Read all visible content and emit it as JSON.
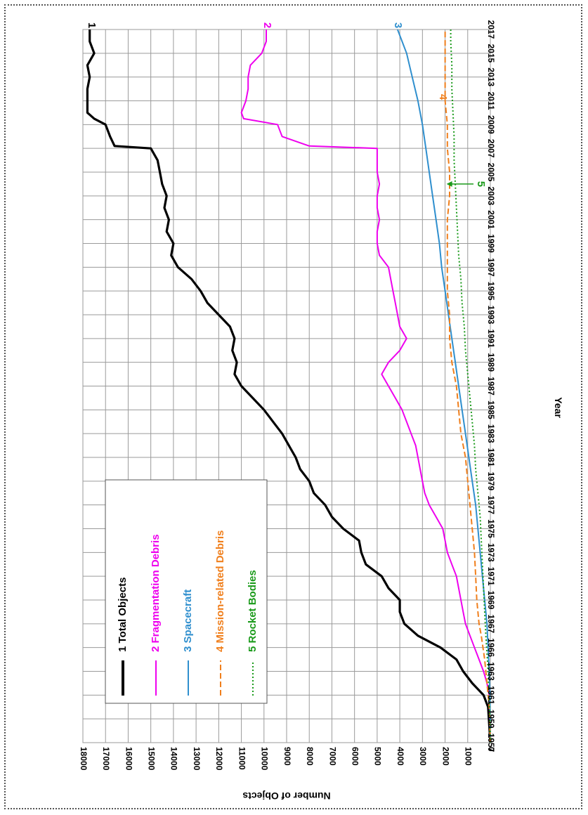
{
  "chart_data": {
    "type": "line",
    "xlabel": "Year",
    "ylabel": "Number of Objects",
    "xlim": [
      1957,
      2017
    ],
    "ylim": [
      0,
      18000
    ],
    "x_ticks": [
      "1957",
      "1959",
      "1961",
      "1963",
      "1966",
      "1967",
      "1969",
      "1971",
      "1973",
      "1975",
      "1977",
      "1979",
      "1981",
      "1983",
      "1985",
      "1987",
      "1989",
      "1991",
      "1993",
      "1995",
      "1997",
      "1999",
      "2001",
      "2003",
      "2005",
      "2007",
      "2009",
      "2011",
      "2013",
      "2015",
      "2017"
    ],
    "y_ticks": [
      "0",
      "1000",
      "2000",
      "3000",
      "4000",
      "5000",
      "6000",
      "7000",
      "8000",
      "9000",
      "10000",
      "11000",
      "12000",
      "13000",
      "14000",
      "15000",
      "16000",
      "17000",
      "18000"
    ],
    "grid": true,
    "legend_position": "top-left",
    "series": [
      {
        "name": "1 Total Objects",
        "label": "1",
        "color": "#000000",
        "dash": "solid",
        "x": [
          1957,
          1960,
          1961,
          1962,
          1963,
          1964,
          1965,
          1966,
          1967,
          1968,
          1969,
          1970,
          1971,
          1972,
          1973,
          1974,
          1975,
          1976,
          1977,
          1978,
          1979,
          1980,
          1981,
          1982,
          1983,
          1984,
          1985,
          1986,
          1987,
          1988,
          1989,
          1990,
          1991,
          1992,
          1993,
          1994,
          1995,
          1996,
          1997,
          1998,
          1999,
          2000,
          2001,
          2002,
          2003,
          2004,
          2005,
          2006,
          2007,
          2007.2,
          2008,
          2009,
          2009.5,
          2010,
          2011,
          2012,
          2013,
          2014,
          2015,
          2016,
          2017
        ],
        "y": [
          0,
          100,
          300,
          800,
          1200,
          1500,
          2200,
          3200,
          3800,
          4000,
          4000,
          4500,
          4800,
          5500,
          5700,
          5800,
          6500,
          7000,
          7300,
          7800,
          8000,
          8400,
          8600,
          8900,
          9200,
          9600,
          10000,
          10500,
          11000,
          11300,
          11200,
          11400,
          11300,
          11500,
          12000,
          12500,
          12800,
          13200,
          13800,
          14100,
          14000,
          14300,
          14200,
          14400,
          14300,
          14500,
          14600,
          14700,
          15000,
          16600,
          16800,
          17000,
          17500,
          17800,
          17800,
          17800,
          17700,
          17800,
          17500,
          17700,
          17700
        ]
      },
      {
        "name": "2 Fragmentation Debris",
        "label": "2",
        "color": "#ee00ee",
        "dash": "solid",
        "x": [
          1957,
          1961,
          1962,
          1963,
          1964,
          1965,
          1966,
          1967,
          1968,
          1969,
          1970,
          1971,
          1972,
          1973,
          1974,
          1975,
          1976,
          1977,
          1978,
          1979,
          1980,
          1981,
          1982,
          1983,
          1984,
          1985,
          1986,
          1987,
          1988,
          1989,
          1990,
          1991,
          1992,
          1993,
          1994,
          1995,
          1996,
          1997,
          1998,
          1999,
          2000,
          2001,
          2002,
          2003,
          2004,
          2005,
          2006,
          2007,
          2007.2,
          2008,
          2009,
          2009.5,
          2010,
          2011,
          2012,
          2013,
          2014,
          2015,
          2016,
          2017
        ],
        "y": [
          0,
          50,
          150,
          300,
          500,
          700,
          900,
          1100,
          1200,
          1300,
          1400,
          1500,
          1700,
          1900,
          2000,
          2100,
          2400,
          2700,
          2900,
          3000,
          3100,
          3200,
          3300,
          3500,
          3700,
          3900,
          4200,
          4500,
          4800,
          4500,
          4000,
          3700,
          4000,
          4100,
          4200,
          4300,
          4400,
          4500,
          4900,
          5000,
          5000,
          4900,
          5000,
          5000,
          4900,
          5000,
          5000,
          5000,
          8000,
          9200,
          9400,
          10900,
          11000,
          10800,
          10700,
          10700,
          10600,
          10100,
          9900,
          9900
        ]
      },
      {
        "name": "3 Spacecraft",
        "label": "3",
        "color": "#2f8fce",
        "dash": "solid",
        "x": [
          1957,
          1961,
          1963,
          1965,
          1967,
          1969,
          1971,
          1973,
          1975,
          1977,
          1979,
          1981,
          1983,
          1985,
          1987,
          1989,
          1991,
          1993,
          1995,
          1997,
          1999,
          2001,
          2003,
          2005,
          2007,
          2009,
          2011,
          2013,
          2015,
          2017
        ],
        "y": [
          0,
          20,
          50,
          100,
          150,
          250,
          350,
          450,
          550,
          650,
          800,
          950,
          1100,
          1250,
          1400,
          1550,
          1700,
          1850,
          2000,
          2150,
          2250,
          2400,
          2550,
          2700,
          2850,
          3000,
          3200,
          3450,
          3700,
          4100
        ]
      },
      {
        "name": "4 Mission-related Debris",
        "label": "4",
        "color": "#f07f1c",
        "dash": "8,4",
        "x": [
          1957,
          1960,
          1962,
          1964,
          1966,
          1967,
          1969,
          1971,
          1973,
          1975,
          1977,
          1979,
          1981,
          1983,
          1985,
          1987,
          1989,
          1991,
          1993,
          1995,
          1997,
          1999,
          2001,
          2003,
          2005,
          2007,
          2009,
          2011,
          2013,
          2015,
          2017
        ],
        "y": [
          0,
          50,
          150,
          250,
          400,
          500,
          600,
          650,
          700,
          800,
          900,
          1000,
          1100,
          1300,
          1400,
          1500,
          1700,
          1800,
          1800,
          1900,
          1900,
          1900,
          1900,
          1800,
          1800,
          1900,
          1900,
          2000,
          2000,
          2000,
          2000
        ]
      },
      {
        "name": "5 Rocket Bodies",
        "label": "5",
        "color": "#1a9a1a",
        "dash": "2,3",
        "x": [
          1957,
          1960,
          1962,
          1964,
          1966,
          1968,
          1970,
          1972,
          1974,
          1976,
          1978,
          1980,
          1982,
          1984,
          1986,
          1988,
          1990,
          1992,
          1994,
          1996,
          1998,
          2000,
          2002,
          2004,
          2006,
          2008,
          2010,
          2012,
          2014,
          2016,
          2017
        ],
        "y": [
          0,
          30,
          80,
          130,
          200,
          250,
          300,
          350,
          400,
          450,
          550,
          650,
          700,
          800,
          900,
          1000,
          1100,
          1150,
          1250,
          1300,
          1400,
          1450,
          1500,
          1550,
          1600,
          1600,
          1650,
          1700,
          1700,
          1750,
          1750
        ]
      }
    ],
    "annotation_arrow": {
      "label": "5",
      "x": 2004,
      "y": 1750
    }
  }
}
